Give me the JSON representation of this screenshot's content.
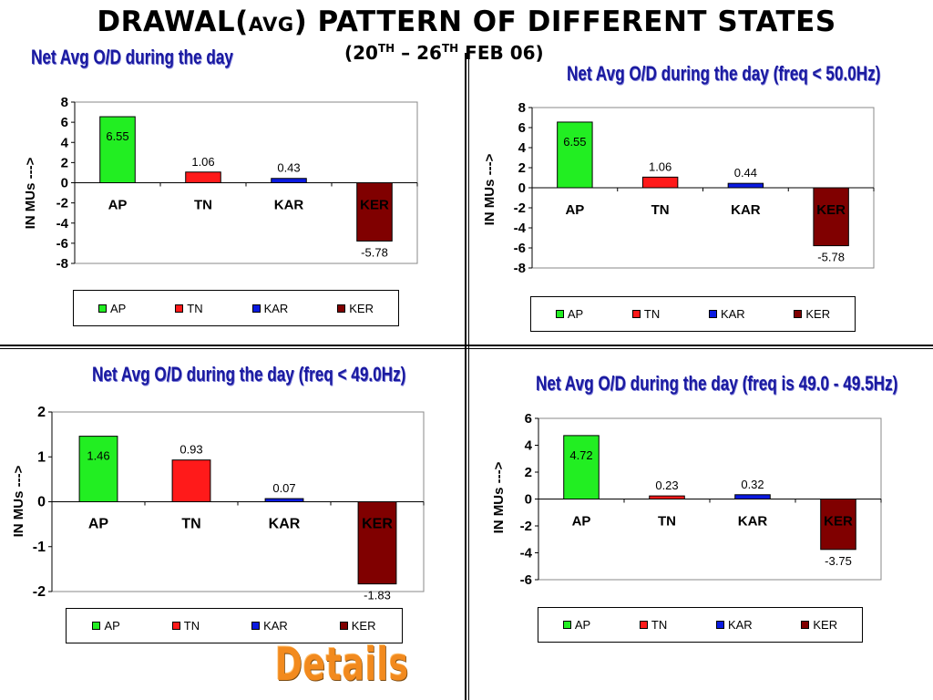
{
  "page": {
    "title_prefix": "DRAWAL(",
    "title_small": "AVG",
    "title_suffix": ") PATTERN OF DIFFERENT STATES",
    "date_open": "(20",
    "date_sup1": "TH",
    "date_mid": " – 26",
    "date_sup2": "TH",
    "date_close": " FEB 06)",
    "details_link": "Details"
  },
  "colors": {
    "AP": "#22ee22",
    "TN": "#ff1a1a",
    "KAR": "#0a1ae0",
    "KER": "#800000"
  },
  "chart_data": [
    {
      "type": "bar",
      "title": "Net Avg O/D during the day",
      "ylabel": "IN MUs --->",
      "categories": [
        "AP",
        "TN",
        "KAR",
        "KER"
      ],
      "values": [
        6.55,
        1.06,
        0.43,
        -5.78
      ],
      "value_labels": [
        "6.55",
        "1.06",
        "0.43",
        "-5.78"
      ],
      "ylim": [
        -8,
        8
      ],
      "yticks": [
        8,
        6,
        4,
        2,
        0,
        -2,
        -4,
        -6,
        -8
      ],
      "legend": [
        "AP",
        "TN",
        "KAR",
        "KER"
      ]
    },
    {
      "type": "bar",
      "title": "Net Avg O/D during the day (freq < 50.0Hz)",
      "ylabel": "IN MUs --->",
      "categories": [
        "AP",
        "TN",
        "KAR",
        "KER"
      ],
      "values": [
        6.55,
        1.06,
        0.44,
        -5.78
      ],
      "value_labels": [
        "6.55",
        "1.06",
        "0.44",
        "-5.78"
      ],
      "ylim": [
        -8,
        8
      ],
      "yticks": [
        8,
        6,
        4,
        2,
        0,
        -2,
        -4,
        -6,
        -8
      ],
      "legend": [
        "AP",
        "TN",
        "KAR",
        "KER"
      ]
    },
    {
      "type": "bar",
      "title": "Net Avg O/D during the day (freq < 49.0Hz)",
      "ylabel": "IN MUs --->",
      "categories": [
        "AP",
        "TN",
        "KAR",
        "KER"
      ],
      "values": [
        1.46,
        0.93,
        0.07,
        -1.83
      ],
      "value_labels": [
        "1.46",
        "0.93",
        "0.07",
        "-1.83"
      ],
      "ylim": [
        -2,
        2
      ],
      "yticks": [
        2,
        1,
        0,
        -1,
        -2
      ],
      "legend": [
        "AP",
        "TN",
        "KAR",
        "KER"
      ]
    },
    {
      "type": "bar",
      "title": "Net Avg O/D during the day (freq is 49.0 - 49.5Hz)",
      "ylabel": "IN MUs --->",
      "categories": [
        "AP",
        "TN",
        "KAR",
        "KER"
      ],
      "values": [
        4.72,
        0.23,
        0.32,
        -3.75
      ],
      "value_labels": [
        "4.72",
        "0.23",
        "0.32",
        "-3.75"
      ],
      "ylim": [
        -6,
        6
      ],
      "yticks": [
        6,
        4,
        2,
        0,
        -2,
        -4,
        -6
      ],
      "legend": [
        "AP",
        "TN",
        "KAR",
        "KER"
      ]
    }
  ]
}
